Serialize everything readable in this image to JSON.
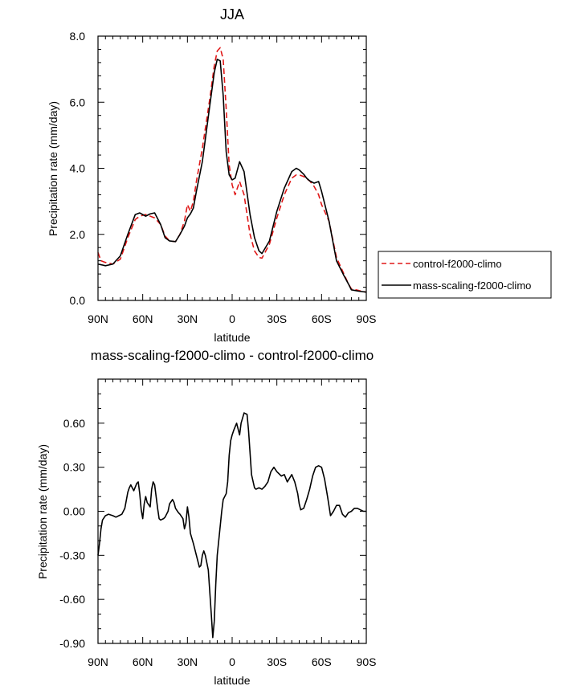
{
  "colors": {
    "control": "#e01818",
    "mass": "#000000"
  },
  "chart_data": [
    {
      "type": "line",
      "title": "JJA",
      "xlabel": "latitude",
      "ylabel": "Precipitation rate (mm/day)",
      "xlim": [
        90,
        -90
      ],
      "ylim": [
        0,
        8
      ],
      "xticks": [
        90,
        60,
        30,
        0,
        -30,
        -60,
        -90
      ],
      "xtick_labels": [
        "90N",
        "60N",
        "30N",
        "0",
        "30S",
        "60S",
        "90S"
      ],
      "yticks": [
        0,
        2,
        4,
        6,
        8
      ],
      "ytick_labels": [
        "0.0",
        "2.0",
        "4.0",
        "6.0",
        "8.0"
      ],
      "legend": {
        "position": "right",
        "entries": [
          "control-f2000-climo",
          "mass-scaling-f2000-climo"
        ]
      },
      "series": [
        {
          "name": "control-f2000-climo",
          "style": "dashed",
          "color": "#e01818",
          "x": [
            90,
            88,
            85,
            80,
            75,
            70,
            65,
            62,
            58,
            55,
            52,
            48,
            45,
            42,
            38,
            35,
            32,
            30,
            28,
            26,
            24,
            20,
            15,
            12,
            10,
            8,
            6,
            4,
            2,
            0,
            -2,
            -5,
            -8,
            -12,
            -15,
            -18,
            -20,
            -25,
            -30,
            -35,
            -40,
            -43,
            -45,
            -48,
            -50,
            -52,
            -55,
            -58,
            -60,
            -65,
            -70,
            -75,
            -78,
            -80,
            -85,
            -90
          ],
          "y": [
            1.45,
            1.2,
            1.15,
            1.1,
            1.25,
            1.9,
            2.45,
            2.55,
            2.6,
            2.55,
            2.5,
            2.3,
            1.95,
            1.8,
            1.78,
            2.0,
            2.4,
            2.9,
            2.7,
            3.0,
            3.6,
            4.6,
            6.1,
            7.1,
            7.55,
            7.65,
            7.3,
            5.8,
            4.1,
            3.5,
            3.2,
            3.6,
            3.2,
            2.0,
            1.5,
            1.3,
            1.28,
            1.7,
            2.5,
            3.2,
            3.7,
            3.8,
            3.8,
            3.75,
            3.68,
            3.62,
            3.45,
            3.2,
            2.9,
            2.4,
            1.3,
            0.8,
            0.5,
            0.35,
            0.3,
            0.25
          ]
        },
        {
          "name": "mass-scaling-f2000-climo",
          "style": "solid",
          "color": "#000000",
          "x": [
            90,
            88,
            85,
            80,
            75,
            70,
            65,
            62,
            58,
            55,
            52,
            48,
            45,
            42,
            38,
            35,
            32,
            30,
            28,
            26,
            24,
            20,
            15,
            12,
            10,
            8,
            6,
            4,
            2,
            0,
            -2,
            -5,
            -8,
            -12,
            -15,
            -18,
            -20,
            -25,
            -30,
            -35,
            -40,
            -43,
            -45,
            -48,
            -50,
            -52,
            -55,
            -58,
            -60,
            -65,
            -70,
            -75,
            -78,
            -80,
            -85,
            -90
          ],
          "y": [
            1.1,
            1.08,
            1.05,
            1.1,
            1.35,
            2.0,
            2.6,
            2.65,
            2.55,
            2.62,
            2.65,
            2.3,
            1.9,
            1.8,
            1.78,
            2.0,
            2.25,
            2.5,
            2.62,
            2.8,
            3.3,
            4.2,
            5.9,
            6.9,
            7.3,
            7.25,
            6.2,
            4.5,
            3.8,
            3.65,
            3.7,
            4.2,
            3.9,
            2.6,
            1.9,
            1.5,
            1.42,
            1.8,
            2.7,
            3.4,
            3.9,
            4.0,
            3.95,
            3.82,
            3.7,
            3.62,
            3.55,
            3.6,
            3.3,
            2.4,
            1.2,
            0.75,
            0.5,
            0.32,
            0.28,
            0.25
          ]
        }
      ]
    },
    {
      "type": "line",
      "title": "mass-scaling-f2000-climo - control-f2000-climo",
      "xlabel": "latitude",
      "ylabel": "Precipitation rate (mm/day)",
      "xlim": [
        90,
        -90
      ],
      "ylim": [
        -0.9,
        0.9
      ],
      "xticks": [
        90,
        60,
        30,
        0,
        -30,
        -60,
        -90
      ],
      "xtick_labels": [
        "90N",
        "60N",
        "30N",
        "0",
        "30S",
        "60S",
        "90S"
      ],
      "yticks": [
        -0.9,
        -0.6,
        -0.3,
        0,
        0.3,
        0.6
      ],
      "ytick_labels": [
        "-0.90",
        "-0.60",
        "-0.30",
        "0.00",
        "0.30",
        "0.60"
      ],
      "series": [
        {
          "name": "mass-scaling-f2000-climo - control-f2000-climo",
          "style": "solid",
          "color": "#000000",
          "x": [
            90,
            89,
            88,
            87,
            85,
            83,
            80,
            78,
            76,
            74,
            72,
            70,
            69,
            68,
            66,
            64,
            63,
            62,
            61,
            60,
            59,
            58,
            57,
            55,
            54,
            53,
            52,
            51,
            50,
            49,
            48,
            46,
            45,
            43,
            42,
            40,
            39,
            38,
            36,
            35,
            33,
            32,
            31,
            30,
            29,
            28,
            26,
            24,
            22,
            21,
            20,
            19,
            18,
            16,
            15,
            14,
            13,
            12,
            11,
            10,
            9,
            8,
            7,
            6,
            4,
            3,
            2,
            1,
            0,
            -1,
            -3,
            -5,
            -6,
            -8,
            -10,
            -11,
            -12,
            -13,
            -15,
            -16,
            -18,
            -20,
            -22,
            -24,
            -26,
            -28,
            -30,
            -33,
            -35,
            -37,
            -40,
            -42,
            -44,
            -45,
            -46,
            -48,
            -50,
            -52,
            -54,
            -56,
            -58,
            -60,
            -62,
            -64,
            -66,
            -68,
            -70,
            -72,
            -74,
            -76,
            -78,
            -80,
            -82,
            -84,
            -86,
            -88,
            -90
          ],
          "y": [
            -0.3,
            -0.22,
            -0.12,
            -0.06,
            -0.03,
            -0.02,
            -0.03,
            -0.04,
            -0.03,
            -0.02,
            0.02,
            0.13,
            0.16,
            0.18,
            0.14,
            0.19,
            0.2,
            0.12,
            0.01,
            -0.05,
            0.05,
            0.1,
            0.06,
            0.03,
            0.15,
            0.2,
            0.18,
            0.1,
            0.02,
            -0.05,
            -0.06,
            -0.05,
            -0.04,
            0.0,
            0.05,
            0.08,
            0.06,
            0.02,
            -0.01,
            -0.02,
            -0.05,
            -0.12,
            -0.08,
            0.03,
            -0.04,
            -0.15,
            -0.22,
            -0.3,
            -0.38,
            -0.37,
            -0.3,
            -0.27,
            -0.3,
            -0.4,
            -0.55,
            -0.7,
            -0.86,
            -0.75,
            -0.5,
            -0.3,
            -0.2,
            -0.1,
            0.0,
            0.08,
            0.12,
            0.2,
            0.38,
            0.48,
            0.52,
            0.55,
            0.6,
            0.52,
            0.6,
            0.67,
            0.66,
            0.55,
            0.4,
            0.25,
            0.16,
            0.15,
            0.16,
            0.15,
            0.17,
            0.2,
            0.27,
            0.3,
            0.27,
            0.24,
            0.25,
            0.2,
            0.25,
            0.2,
            0.12,
            0.05,
            0.01,
            0.02,
            0.08,
            0.15,
            0.24,
            0.3,
            0.31,
            0.3,
            0.22,
            0.1,
            -0.03,
            0.0,
            0.04,
            0.04,
            -0.02,
            -0.04,
            -0.01,
            0.0,
            0.02,
            0.02,
            0.01,
            0.0,
            0.0
          ]
        }
      ]
    }
  ]
}
